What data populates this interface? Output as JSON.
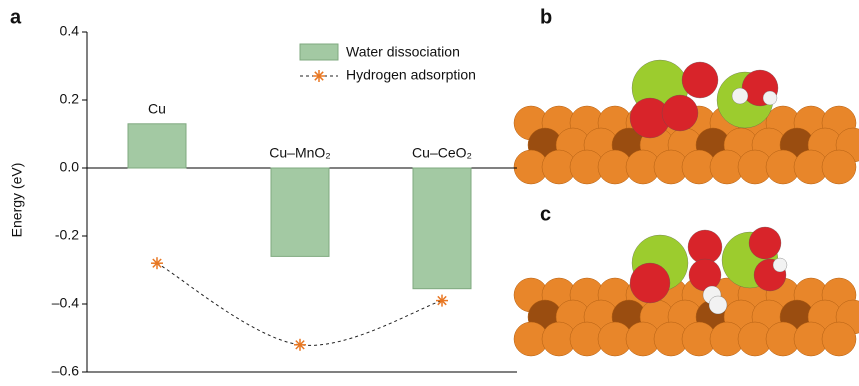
{
  "chart_data": {
    "type": "bar_line",
    "panel_labels": [
      "a",
      "b",
      "c"
    ],
    "y_label": "Energy (eV)",
    "categories": [
      "Cu",
      "Cu–MnO₂",
      "Cu–CeO₂"
    ],
    "series": [
      {
        "name": "Water dissociation",
        "kind": "bar",
        "color": "#a3c9a3",
        "values": [
          0.13,
          -0.26,
          -0.355
        ]
      },
      {
        "name": "Hydrogen adsorption",
        "kind": "line",
        "color": "#e87722",
        "values": [
          -0.28,
          -0.52,
          -0.39
        ]
      }
    ],
    "ylim": [
      -0.6,
      0.4
    ],
    "yticks": [
      0.4,
      0.2,
      {
        "value": 0,
        "label": "0.0"
      },
      -0.2,
      {
        "value": -0.4,
        "label": "–0.4"
      },
      {
        "value": -0.6,
        "label": "–0.6"
      }
    ]
  }
}
